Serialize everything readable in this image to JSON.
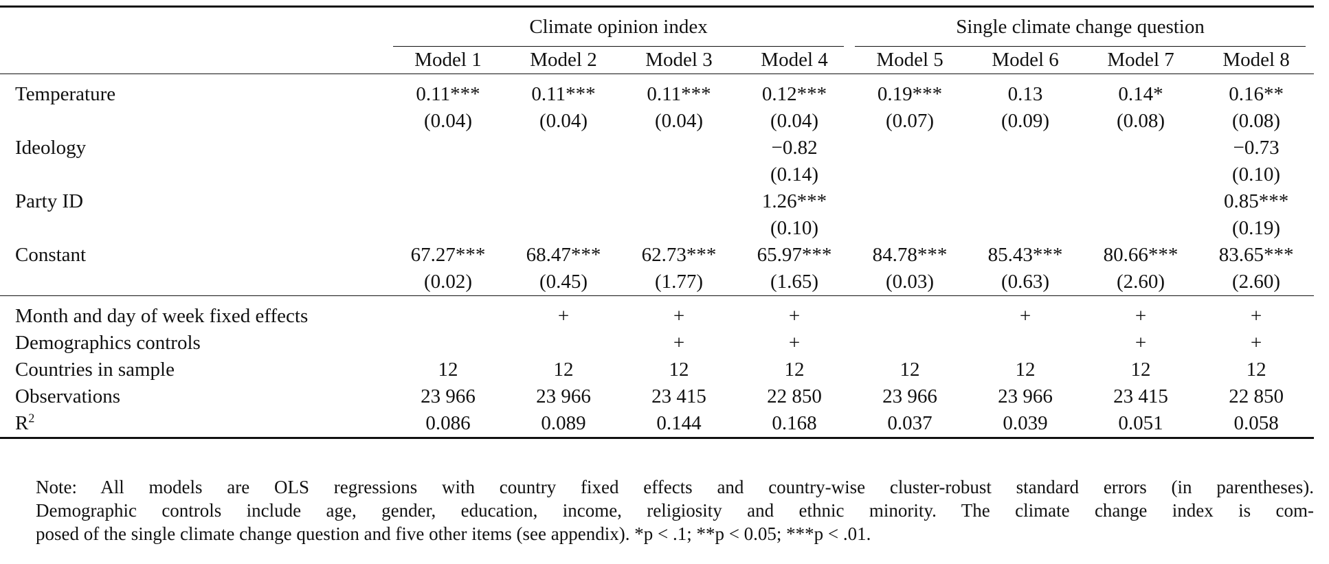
{
  "table": {
    "groups": [
      "Climate opinion index",
      "Single climate change question"
    ],
    "models": [
      "Model 1",
      "Model 2",
      "Model 3",
      "Model 4",
      "Model 5",
      "Model 6",
      "Model 7",
      "Model 8"
    ],
    "rows": [
      {
        "label": "Temperature",
        "coef": [
          "0.11***",
          "0.11***",
          "0.11***",
          "0.12***",
          "0.19***",
          "0.13",
          "0.14*",
          "0.16**"
        ],
        "se": [
          "(0.04)",
          "(0.04)",
          "(0.04)",
          "(0.04)",
          "(0.07)",
          "(0.09)",
          "(0.08)",
          "(0.08)"
        ]
      },
      {
        "label": "Ideology",
        "coef": [
          null,
          null,
          null,
          "−0.82",
          null,
          null,
          null,
          "−0.73"
        ],
        "se": [
          null,
          null,
          null,
          "(0.14)",
          null,
          null,
          null,
          "(0.10)"
        ]
      },
      {
        "label": "Party ID",
        "coef": [
          null,
          null,
          null,
          "1.26***",
          null,
          null,
          null,
          "0.85***"
        ],
        "se": [
          null,
          null,
          null,
          "(0.10)",
          null,
          null,
          null,
          "(0.19)"
        ]
      },
      {
        "label": "Constant",
        "coef": [
          "67.27***",
          "68.47***",
          "62.73***",
          "65.97***",
          "84.78***",
          "85.43***",
          "80.66***",
          "83.65***"
        ],
        "se": [
          "(0.02)",
          "(0.45)",
          "(1.77)",
          "(1.65)",
          "(0.03)",
          "(0.63)",
          "(2.60)",
          "(2.60)"
        ]
      }
    ],
    "controls": [
      {
        "label": "Month and day of week fixed effects",
        "cells": [
          null,
          "+",
          "+",
          "+",
          null,
          "+",
          "+",
          "+"
        ]
      },
      {
        "label": "Demographics controls",
        "cells": [
          null,
          null,
          "+",
          "+",
          null,
          null,
          "+",
          "+"
        ]
      },
      {
        "label": "Countries in sample",
        "cells": [
          "12",
          "12",
          "12",
          "12",
          "12",
          "12",
          "12",
          "12"
        ]
      },
      {
        "label": "Observations",
        "cells": [
          "23 966",
          "23 966",
          "23 415",
          "22 850",
          "23 966",
          "23 966",
          "23 415",
          "22 850"
        ]
      },
      {
        "label": {
          "text": "R",
          "sup": "2"
        },
        "cells": [
          "0.086",
          "0.089",
          "0.144",
          "0.168",
          "0.037",
          "0.039",
          "0.051",
          "0.058"
        ]
      }
    ]
  },
  "note": [
    "Note: All models are OLS regressions with country fixed effects and country-wise cluster-robust standard errors (in parentheses).",
    "Demographic controls include age, gender, education, income, religiosity and ethnic minority. The climate change index is com-",
    "posed of the single climate change question and five other items (see appendix). *p < .1; **p < 0.05; ***p < .01."
  ]
}
